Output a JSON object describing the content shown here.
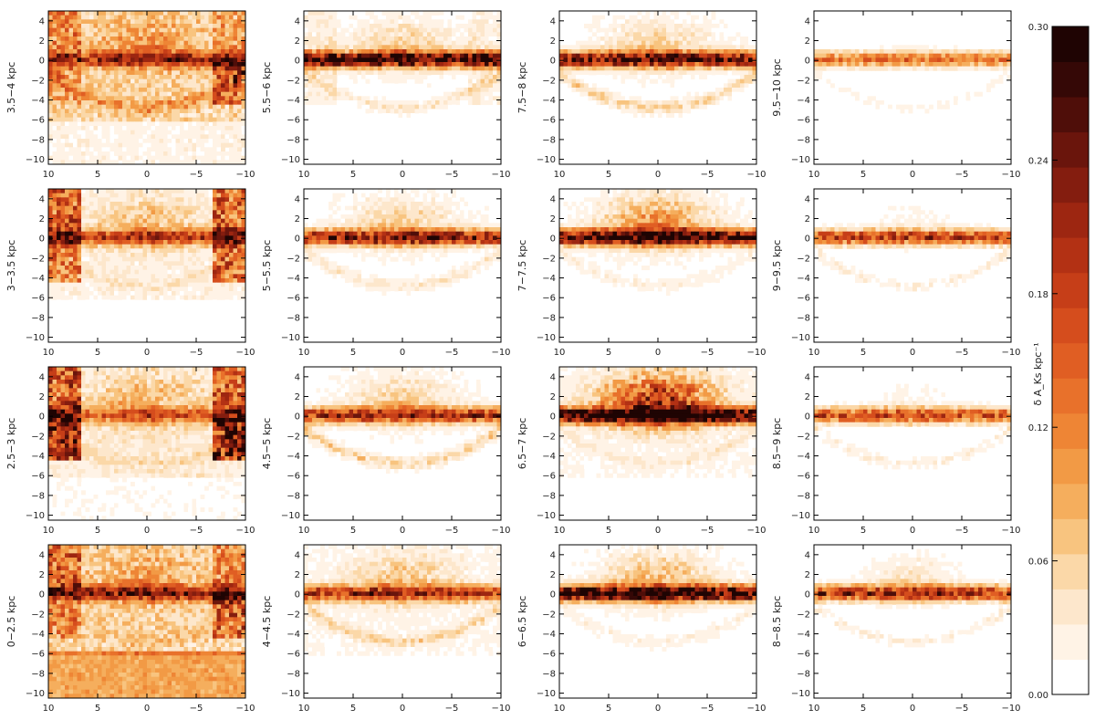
{
  "chart_data": {
    "type": "heatmap",
    "colorbar": {
      "label": "δ A_Ks kpc⁻¹",
      "range": [
        0.0,
        0.3
      ],
      "ticks": [
        "0.00",
        "0.06",
        "0.12",
        "0.18",
        "0.24",
        "0.30"
      ],
      "palette": [
        "#ffffff",
        "#fff3e6",
        "#fde7cc",
        "#fbd8a8",
        "#f8c47f",
        "#f5ae5d",
        "#f29a45",
        "#ee8535",
        "#e8712b",
        "#e05e23",
        "#d54d1d",
        "#c63e18",
        "#b33114",
        "#9d2611",
        "#841d0f",
        "#6a150c",
        "#4f0e09",
        "#350806",
        "#1f0403"
      ]
    },
    "x_ticks": [
      "10",
      "5",
      "0",
      "−5",
      "−10"
    ],
    "y_ticks": [
      "4",
      "2",
      "0",
      "−2",
      "−4",
      "−6",
      "−8",
      "−10"
    ],
    "xlim": [
      10,
      -10
    ],
    "ylim": [
      -10.5,
      5
    ],
    "grid": false,
    "panels": [
      {
        "label": "3.5−4 kpc",
        "disk": 0.14,
        "bulge": 0.05,
        "haze": 0.07,
        "ring": 0.06,
        "floor": 0.0,
        "patches": [
          0.06,
          0.04,
          0.04,
          0.1
        ]
      },
      {
        "label": "5.5−6 kpc",
        "disk": 0.28,
        "bulge": 0.05,
        "haze": 0.01,
        "ring": 0.03,
        "floor": 0.0,
        "patches": [
          0.02,
          0.02,
          0.02,
          0.02
        ]
      },
      {
        "label": "7.5−8 kpc",
        "disk": 0.25,
        "bulge": 0.05,
        "haze": 0.01,
        "ring": 0.05,
        "floor": 0.0,
        "patches": [
          0.0,
          0.0,
          0.0,
          0.0
        ]
      },
      {
        "label": "9.5−10 kpc",
        "disk": 0.13,
        "bulge": 0.01,
        "haze": 0.0,
        "ring": 0.02,
        "floor": 0.0,
        "patches": [
          0.0,
          0.0,
          0.0,
          0.0
        ]
      },
      {
        "label": "3−3.5 kpc",
        "disk": 0.15,
        "bulge": 0.05,
        "haze": 0.03,
        "ring": 0.02,
        "floor": 0.0,
        "patches": [
          0.13,
          0.1,
          0.13,
          0.12
        ]
      },
      {
        "label": "5−5.5 kpc",
        "disk": 0.22,
        "bulge": 0.05,
        "haze": 0.01,
        "ring": 0.03,
        "floor": 0.0,
        "patches": [
          0.0,
          0.0,
          0.0,
          0.0
        ]
      },
      {
        "label": "7−7.5 kpc",
        "disk": 0.27,
        "bulge": 0.1,
        "haze": 0.01,
        "ring": 0.02,
        "floor": 0.0,
        "patches": [
          0.0,
          0.0,
          0.0,
          0.0
        ]
      },
      {
        "label": "9−9.5 kpc",
        "disk": 0.18,
        "bulge": 0.02,
        "haze": 0.0,
        "ring": 0.03,
        "floor": 0.0,
        "patches": [
          0.0,
          0.0,
          0.0,
          0.0
        ]
      },
      {
        "label": "2.5−3 kpc",
        "disk": 0.12,
        "bulge": 0.05,
        "haze": 0.04,
        "ring": 0.02,
        "floor": 0.0,
        "patches": [
          0.14,
          0.17,
          0.12,
          0.2
        ]
      },
      {
        "label": "4.5−5 kpc",
        "disk": 0.19,
        "bulge": 0.05,
        "haze": 0.01,
        "ring": 0.05,
        "floor": 0.0,
        "patches": [
          0.0,
          0.0,
          0.0,
          0.0
        ]
      },
      {
        "label": "6.5−7 kpc",
        "disk": 0.29,
        "bulge": 0.18,
        "haze": 0.02,
        "ring": 0.02,
        "floor": 0.0,
        "patches": [
          0.0,
          0.0,
          0.0,
          0.0
        ]
      },
      {
        "label": "8.5−9 kpc",
        "disk": 0.17,
        "bulge": 0.02,
        "haze": 0.0,
        "ring": 0.03,
        "floor": 0.0,
        "patches": [
          0.0,
          0.0,
          0.0,
          0.0
        ]
      },
      {
        "label": "0−2.5 kpc",
        "disk": 0.16,
        "bulge": 0.04,
        "haze": 0.07,
        "ring": 0.02,
        "floor": 0.07,
        "patches": [
          0.09,
          0.06,
          0.06,
          0.1
        ]
      },
      {
        "label": "4−4.5 kpc",
        "disk": 0.18,
        "bulge": 0.05,
        "haze": 0.02,
        "ring": 0.04,
        "floor": 0.0,
        "patches": [
          0.0,
          0.0,
          0.0,
          0.0
        ]
      },
      {
        "label": "6−6.5 kpc",
        "disk": 0.29,
        "bulge": 0.07,
        "haze": 0.01,
        "ring": 0.02,
        "floor": 0.0,
        "patches": [
          0.0,
          0.0,
          0.0,
          0.0
        ]
      },
      {
        "label": "8−8.5 kpc",
        "disk": 0.2,
        "bulge": 0.04,
        "haze": 0.0,
        "ring": 0.03,
        "floor": 0.0,
        "patches": [
          0.0,
          0.0,
          0.0,
          0.0
        ]
      }
    ]
  }
}
